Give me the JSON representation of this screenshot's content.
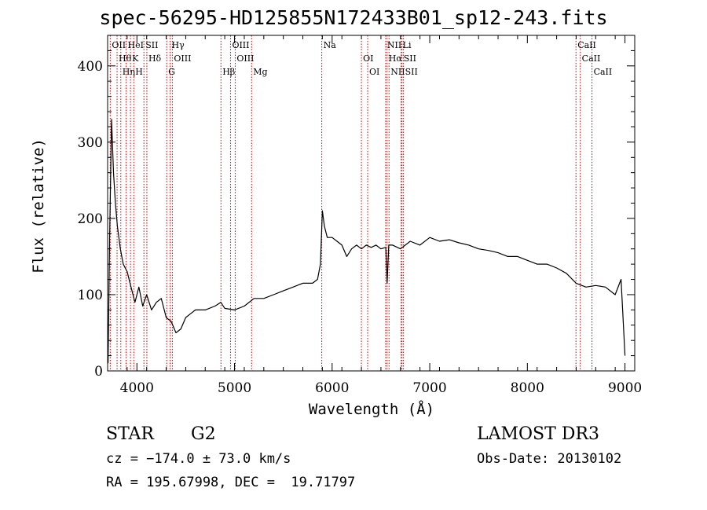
{
  "chart_data": {
    "type": "line",
    "title": "spec-56295-HD125855N172433B01_sp12-243.fits",
    "xlabel": "Wavelength (Å)",
    "ylabel": "Flux (relative)",
    "xlim": [
      3700,
      9100
    ],
    "ylim": [
      0,
      440
    ],
    "x_ticks": [
      4000,
      5000,
      6000,
      7000,
      8000,
      9000
    ],
    "y_ticks": [
      0,
      100,
      200,
      300,
      400
    ],
    "grid": false,
    "series": [
      {
        "color": "#000000",
        "x": [
          3705,
          3720,
          3740,
          3760,
          3780,
          3800,
          3830,
          3860,
          3900,
          3940,
          3980,
          4020,
          4060,
          4100,
          4150,
          4200,
          4250,
          4300,
          4350,
          4400,
          4450,
          4500,
          4550,
          4600,
          4700,
          4800,
          4860,
          4900,
          5000,
          5100,
          5200,
          5300,
          5400,
          5500,
          5600,
          5700,
          5800,
          5850,
          5880,
          5900,
          5920,
          5950,
          6000,
          6050,
          6100,
          6150,
          6200,
          6250,
          6300,
          6350,
          6400,
          6450,
          6500,
          6550,
          6563,
          6580,
          6620,
          6700,
          6800,
          6900,
          7000,
          7100,
          7200,
          7300,
          7400,
          7500,
          7600,
          7700,
          7800,
          7900,
          8000,
          8100,
          8200,
          8300,
          8400,
          8500,
          8600,
          8700,
          8800,
          8900,
          8960,
          9000
        ],
        "y": [
          10,
          170,
          330,
          260,
          220,
          190,
          160,
          140,
          130,
          110,
          90,
          110,
          85,
          100,
          80,
          90,
          95,
          70,
          65,
          50,
          55,
          70,
          75,
          80,
          80,
          85,
          90,
          82,
          80,
          85,
          95,
          95,
          100,
          105,
          110,
          115,
          115,
          120,
          140,
          210,
          190,
          175,
          175,
          170,
          165,
          150,
          160,
          165,
          160,
          165,
          162,
          165,
          160,
          162,
          115,
          165,
          165,
          160,
          170,
          165,
          175,
          170,
          172,
          168,
          165,
          160,
          158,
          155,
          150,
          150,
          145,
          140,
          140,
          135,
          128,
          115,
          110,
          112,
          110,
          100,
          120,
          20
        ]
      }
    ],
    "line_markers": [
      {
        "label": "OII",
        "x": 3727
      },
      {
        "label": "Hθ",
        "x": 3797
      },
      {
        "label": "Hη",
        "x": 3835
      },
      {
        "label": "HeI",
        "x": 3889
      },
      {
        "label": "K",
        "x": 3934
      },
      {
        "label": "H",
        "x": 3968
      },
      {
        "label": "SII",
        "x": 4072
      },
      {
        "label": "Hδ",
        "x": 4102
      },
      {
        "label": "G",
        "x": 4305
      },
      {
        "label": "Hγ",
        "x": 4340
      },
      {
        "label": "OIII",
        "x": 4363
      },
      {
        "label": "Hβ",
        "x": 4861
      },
      {
        "label": "OIII",
        "x": 4959
      },
      {
        "label": "OIII",
        "x": 5007
      },
      {
        "label": "Mg",
        "x": 5175
      },
      {
        "label": "Na",
        "x": 5894
      },
      {
        "label": "OI",
        "x": 6300
      },
      {
        "label": "OI",
        "x": 6364
      },
      {
        "label": "NII",
        "x": 6548
      },
      {
        "label": "Hα",
        "x": 6563
      },
      {
        "label": "NII",
        "x": 6583
      },
      {
        "label": "Li",
        "x": 6707
      },
      {
        "label": "SII",
        "x": 6716
      },
      {
        "label": "SII",
        "x": 6731
      },
      {
        "label": "CaII",
        "x": 8498
      },
      {
        "label": "CaII",
        "x": 8542
      },
      {
        "label": "CaII",
        "x": 8662
      }
    ]
  },
  "info": {
    "class_label": "STAR",
    "subclass_label": "G2",
    "cz_text": "cz = −174.0 ± 73.0 km/s",
    "radec_text": "RA = 195.67998, DEC =  19.71797",
    "survey_text": "LAMOST DR3",
    "obsdate_text": "Obs-Date: 20130102"
  }
}
